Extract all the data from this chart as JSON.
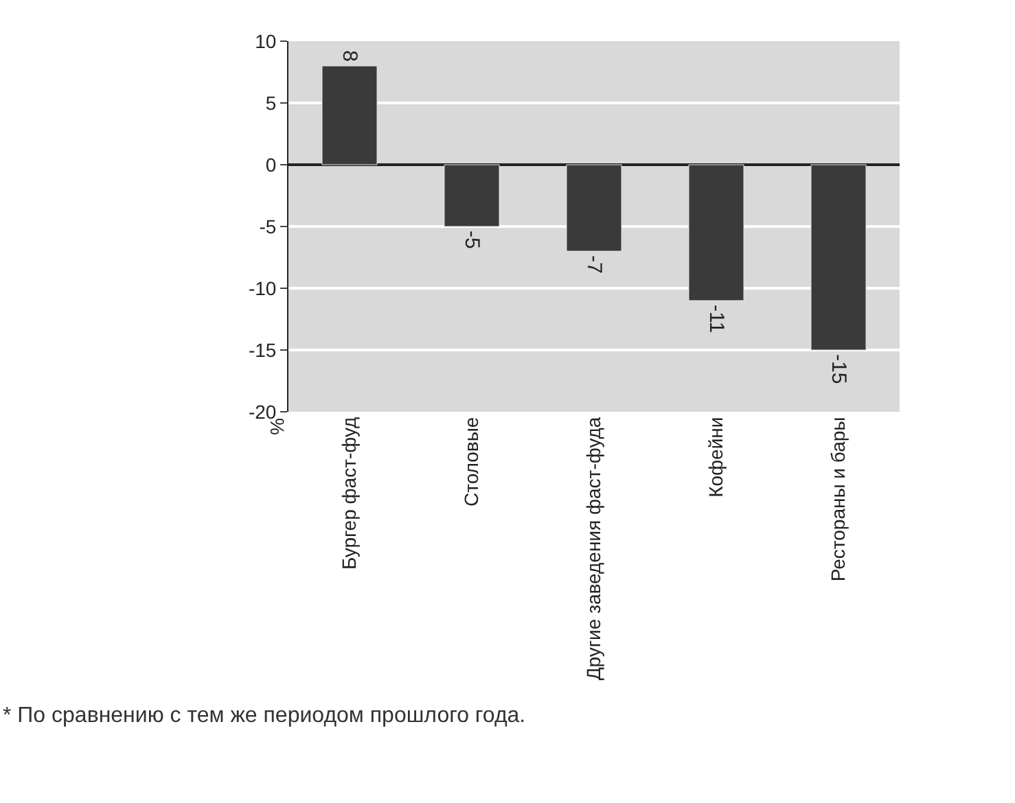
{
  "chart_data": {
    "type": "bar",
    "categories": [
      "Бургер фаст-фуд",
      "Столовые",
      "Другие заведения фаст-фуда",
      "Кофейни",
      "Рестораны и бары"
    ],
    "values": [
      8,
      -5,
      -7,
      -11,
      -15
    ],
    "color": "#3a3a3a",
    "ylim": [
      -20,
      10
    ],
    "yticks": [
      -20,
      -15,
      -10,
      -5,
      0,
      5,
      10
    ],
    "grid": "y",
    "data_labels": true,
    "ylabel": "%",
    "annotations": [
      "* По сравнению с тем же периодом прошлого года."
    ]
  }
}
